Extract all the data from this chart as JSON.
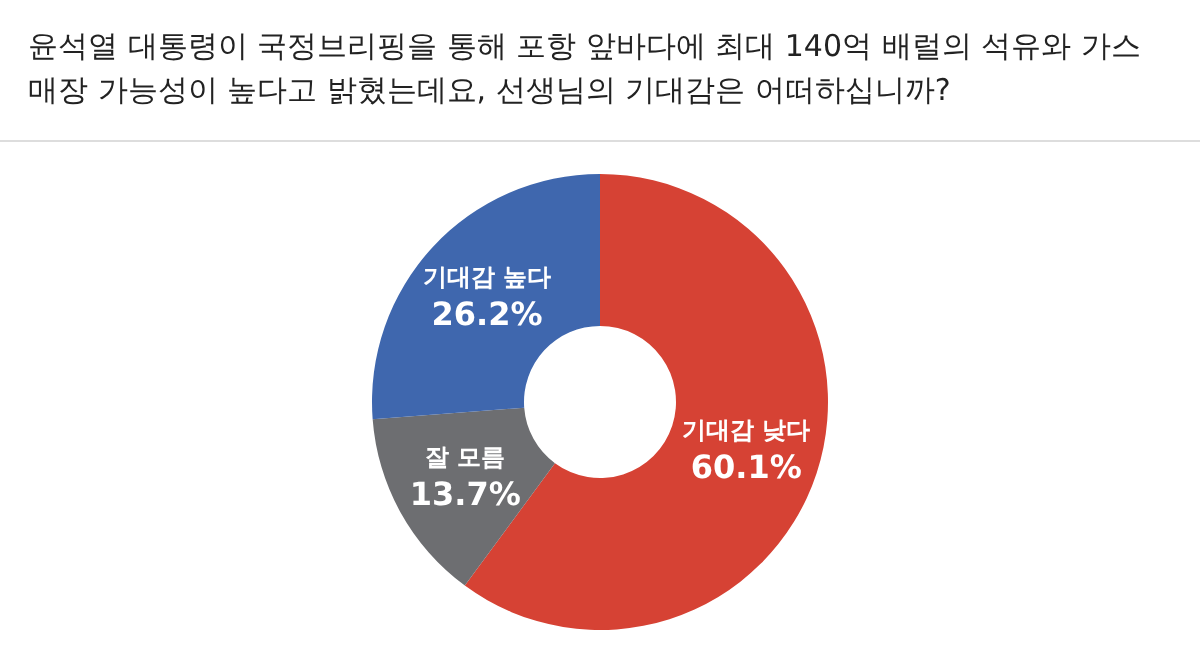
{
  "chart_data": {
    "type": "donut",
    "title": "윤석열 대통령이 국정브리핑을 통해 포항 앞바다에 최대 140억 배럴의 석유와 가스 매장 가능성이 높다고 밝혔는데요, 선생님의 기대감은 어떠하십니까?",
    "categories": [
      "기대감 낮다",
      "잘 모름",
      "기대감 높다"
    ],
    "values": [
      60.1,
      13.7,
      26.2
    ],
    "colors": [
      "#d64234",
      "#6d6e71",
      "#3f67ae"
    ],
    "value_labels": [
      "60.1%",
      "13.7%",
      "26.2%"
    ]
  }
}
